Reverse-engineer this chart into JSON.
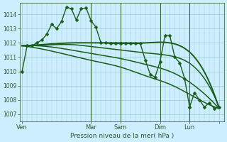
{
  "background_color": "#cceeff",
  "grid_color": "#99cccc",
  "line_color": "#1a5c1a",
  "ylim": [
    1006.5,
    1014.8
  ],
  "yticks": [
    1007,
    1008,
    1009,
    1010,
    1011,
    1012,
    1013,
    1014
  ],
  "xlabel": "Pression niveau de la mer( hPa )",
  "vline_color": "#336633",
  "series_main": {
    "x": [
      0,
      1,
      2,
      3,
      4,
      5,
      6,
      7,
      8,
      9,
      10,
      11,
      12,
      13,
      14,
      15,
      16,
      17,
      18,
      19,
      20
    ],
    "y": [
      1010.0,
      1011.8,
      1011.8,
      1012.0,
      1012.2,
      1012.6,
      1013.3,
      1013.0,
      1013.5,
      1014.5,
      1014.4,
      1013.6,
      1014.4,
      1014.45,
      1013.55,
      1013.1,
      1012.0,
      1012.0,
      1011.95,
      1011.95,
      1011.95
    ],
    "marker": "D",
    "markersize": 2.5,
    "linewidth": 1.0
  },
  "series_main2": {
    "x": [
      20,
      21,
      22,
      23,
      24,
      25,
      26,
      27,
      28,
      29,
      30,
      31,
      32,
      33,
      34
    ],
    "y": [
      1011.95,
      1011.95,
      1011.95,
      1011.95,
      1011.95,
      1010.8,
      1009.8,
      1009.6,
      1010.7,
      1012.5,
      1012.5,
      1011.0,
      1010.6,
      1009.5,
      1007.5
    ],
    "marker": "D",
    "markersize": 2.5,
    "linewidth": 1.0
  },
  "series_end": {
    "x": [
      34,
      35,
      36,
      37,
      38,
      39,
      40
    ],
    "y": [
      1007.5,
      1008.5,
      1008.0,
      1007.5,
      1007.8,
      1007.4,
      1007.5
    ],
    "marker": "D",
    "markersize": 2.5,
    "linewidth": 1.0
  },
  "smooth_lines": [
    {
      "x": [
        0,
        5,
        10,
        15,
        20,
        25,
        30,
        35,
        40
      ],
      "y": [
        1011.8,
        1011.9,
        1012.0,
        1012.0,
        1012.0,
        1012.0,
        1012.0,
        1011.0,
        1007.4
      ],
      "linewidth": 1.4
    },
    {
      "x": [
        0,
        5,
        10,
        15,
        20,
        25,
        30,
        35,
        40
      ],
      "y": [
        1011.8,
        1011.85,
        1011.88,
        1011.7,
        1011.5,
        1011.3,
        1011.1,
        1010.3,
        1007.5
      ],
      "linewidth": 1.1
    },
    {
      "x": [
        0,
        5,
        10,
        15,
        20,
        25,
        30,
        35,
        40
      ],
      "y": [
        1011.8,
        1011.75,
        1011.5,
        1011.2,
        1010.9,
        1010.5,
        1010.0,
        1009.0,
        1007.4
      ],
      "linewidth": 1.1
    },
    {
      "x": [
        0,
        5,
        10,
        15,
        20,
        25,
        30,
        35,
        40
      ],
      "y": [
        1011.8,
        1011.5,
        1011.1,
        1010.7,
        1010.3,
        1009.7,
        1009.1,
        1008.2,
        1007.4
      ],
      "linewidth": 1.1
    }
  ],
  "xlim": [
    -0.5,
    41
  ],
  "xtick_positions": [
    0,
    14,
    20,
    28,
    34,
    40
  ],
  "xtick_labels": [
    "Ven",
    "Mar",
    "Sam",
    "Dim",
    "Lun",
    ""
  ],
  "vlines_x": [
    14,
    20,
    28,
    34
  ]
}
